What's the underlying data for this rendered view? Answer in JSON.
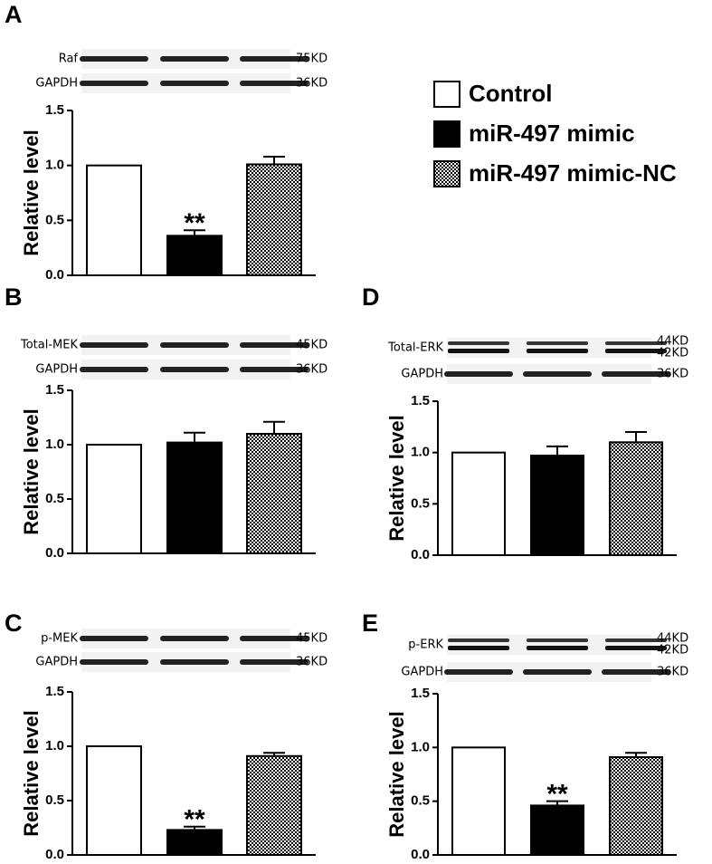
{
  "legend": [
    {
      "name": "Control",
      "color": "#ffffff"
    },
    {
      "name": "miR-497 mimic",
      "color": "#000000"
    },
    {
      "name": "miR-497 mimic-NC",
      "color": "#000000",
      "pattern": "checker"
    }
  ],
  "chart_data": [
    {
      "type": "bar",
      "panel": "A",
      "ylabel": "Relative level",
      "blots": [
        {
          "label": "Raf",
          "sizes": [
            "75KD"
          ]
        },
        {
          "label": "GAPDH",
          "sizes": [
            "36KD"
          ]
        }
      ],
      "values": [
        1.0,
        0.36,
        1.01
      ],
      "errors": [
        null,
        0.05,
        0.07
      ],
      "significance": [
        null,
        "**",
        null
      ],
      "ylim": [
        0,
        1.5
      ],
      "yticks": [
        {
          "value": 0,
          "label": "0.0"
        },
        0.5,
        {
          "value": 1,
          "label": "1.0"
        },
        1.5
      ]
    },
    {
      "type": "bar",
      "panel": "B",
      "ylabel": "Relative level",
      "blots": [
        {
          "label": "Total-MEK",
          "sizes": [
            "45KD"
          ]
        },
        {
          "label": "GAPDH",
          "sizes": [
            "36KD"
          ]
        }
      ],
      "values": [
        1.0,
        1.02,
        1.1
      ],
      "errors": [
        null,
        0.09,
        0.11
      ],
      "significance": [
        null,
        null,
        null
      ],
      "ylim": [
        0,
        1.5
      ],
      "yticks": [
        {
          "value": 0,
          "label": "0.0"
        },
        0.5,
        {
          "value": 1,
          "label": "1.0"
        },
        1.5
      ]
    },
    {
      "type": "bar",
      "panel": "C",
      "ylabel": "Relative level",
      "blots": [
        {
          "label": "p-MEK",
          "sizes": [
            "45KD"
          ]
        },
        {
          "label": "GAPDH",
          "sizes": [
            "36KD"
          ]
        }
      ],
      "values": [
        1.0,
        0.23,
        0.91
      ],
      "errors": [
        null,
        0.03,
        0.03
      ],
      "significance": [
        null,
        "**",
        null
      ],
      "ylim": [
        0,
        1.5
      ],
      "yticks": [
        {
          "value": 0,
          "label": "0.0"
        },
        0.5,
        {
          "value": 1,
          "label": "1.0"
        },
        1.5
      ]
    },
    {
      "type": "bar",
      "panel": "D",
      "ylabel": "Relative level",
      "blots": [
        {
          "label": "Total-ERK",
          "sizes": [
            "44KD",
            "42KD"
          ]
        },
        {
          "label": "GAPDH",
          "sizes": [
            "36KD"
          ]
        }
      ],
      "values": [
        1.0,
        0.97,
        1.1
      ],
      "errors": [
        null,
        0.09,
        0.1
      ],
      "significance": [
        null,
        null,
        null
      ],
      "ylim": [
        0,
        1.5
      ],
      "yticks": [
        {
          "value": 0,
          "label": "0.0"
        },
        0.5,
        {
          "value": 1,
          "label": "1.0"
        },
        1.5
      ]
    },
    {
      "type": "bar",
      "panel": "E",
      "ylabel": "Relative level",
      "blots": [
        {
          "label": "p-ERK",
          "sizes": [
            "44KD",
            "42KD"
          ]
        },
        {
          "label": "GAPDH",
          "sizes": [
            "36KD"
          ]
        }
      ],
      "values": [
        1.0,
        0.46,
        0.91
      ],
      "errors": [
        null,
        0.04,
        0.04
      ],
      "significance": [
        null,
        "**",
        null
      ],
      "ylim": [
        0,
        1.5
      ],
      "yticks": [
        {
          "value": 0,
          "label": "0.0"
        },
        0.5,
        {
          "value": 1,
          "label": "1.0"
        },
        1.5
      ]
    }
  ]
}
